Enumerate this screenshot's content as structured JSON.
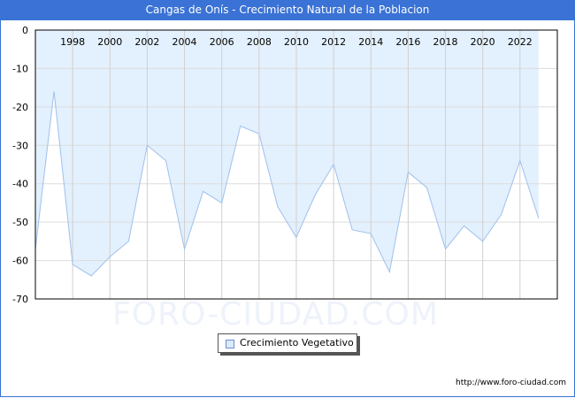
{
  "header": {
    "title": "Cangas de Onís - Crecimiento Natural de la Poblacion"
  },
  "colors": {
    "title_bar": "#3a72d6",
    "area_fill": "#e3f0fd",
    "line": "#9fc0ec",
    "grid": "#d0d0d0"
  },
  "legend": {
    "label": "Crecimiento Vegetativo"
  },
  "watermark": "FORO-CIUDAD.COM",
  "footer": {
    "url": "http://www.foro-ciudad.com"
  },
  "chart_data": {
    "type": "area",
    "title": "Cangas de Onís - Crecimiento Natural de la Poblacion",
    "xlabel": "",
    "ylabel": "",
    "x": [
      1996,
      1997,
      1998,
      1999,
      2000,
      2001,
      2002,
      2003,
      2004,
      2005,
      2006,
      2007,
      2008,
      2009,
      2010,
      2011,
      2012,
      2013,
      2014,
      2015,
      2016,
      2017,
      2018,
      2019,
      2020,
      2021,
      2022,
      2023
    ],
    "series": [
      {
        "name": "Crecimiento Vegetativo",
        "values": [
          -57,
          -16,
          -61,
          -64,
          -59,
          -55,
          -30,
          -34,
          -57,
          -42,
          -45,
          -25,
          -27,
          -46,
          -54,
          -43,
          -35,
          -52,
          -53,
          -63,
          -37,
          -41,
          -57,
          -51,
          -55,
          -48,
          -34,
          -49
        ]
      }
    ],
    "x_tick_labels": [
      "1998",
      "2000",
      "2002",
      "2004",
      "2006",
      "2008",
      "2010",
      "2012",
      "2014",
      "2016",
      "2018",
      "2020",
      "2022"
    ],
    "y_tick_labels": [
      "0",
      "-10",
      "-20",
      "-30",
      "-40",
      "-50",
      "-60",
      "-70"
    ],
    "ylim": [
      -70,
      0
    ],
    "grid": true,
    "legend_position": "bottom"
  }
}
